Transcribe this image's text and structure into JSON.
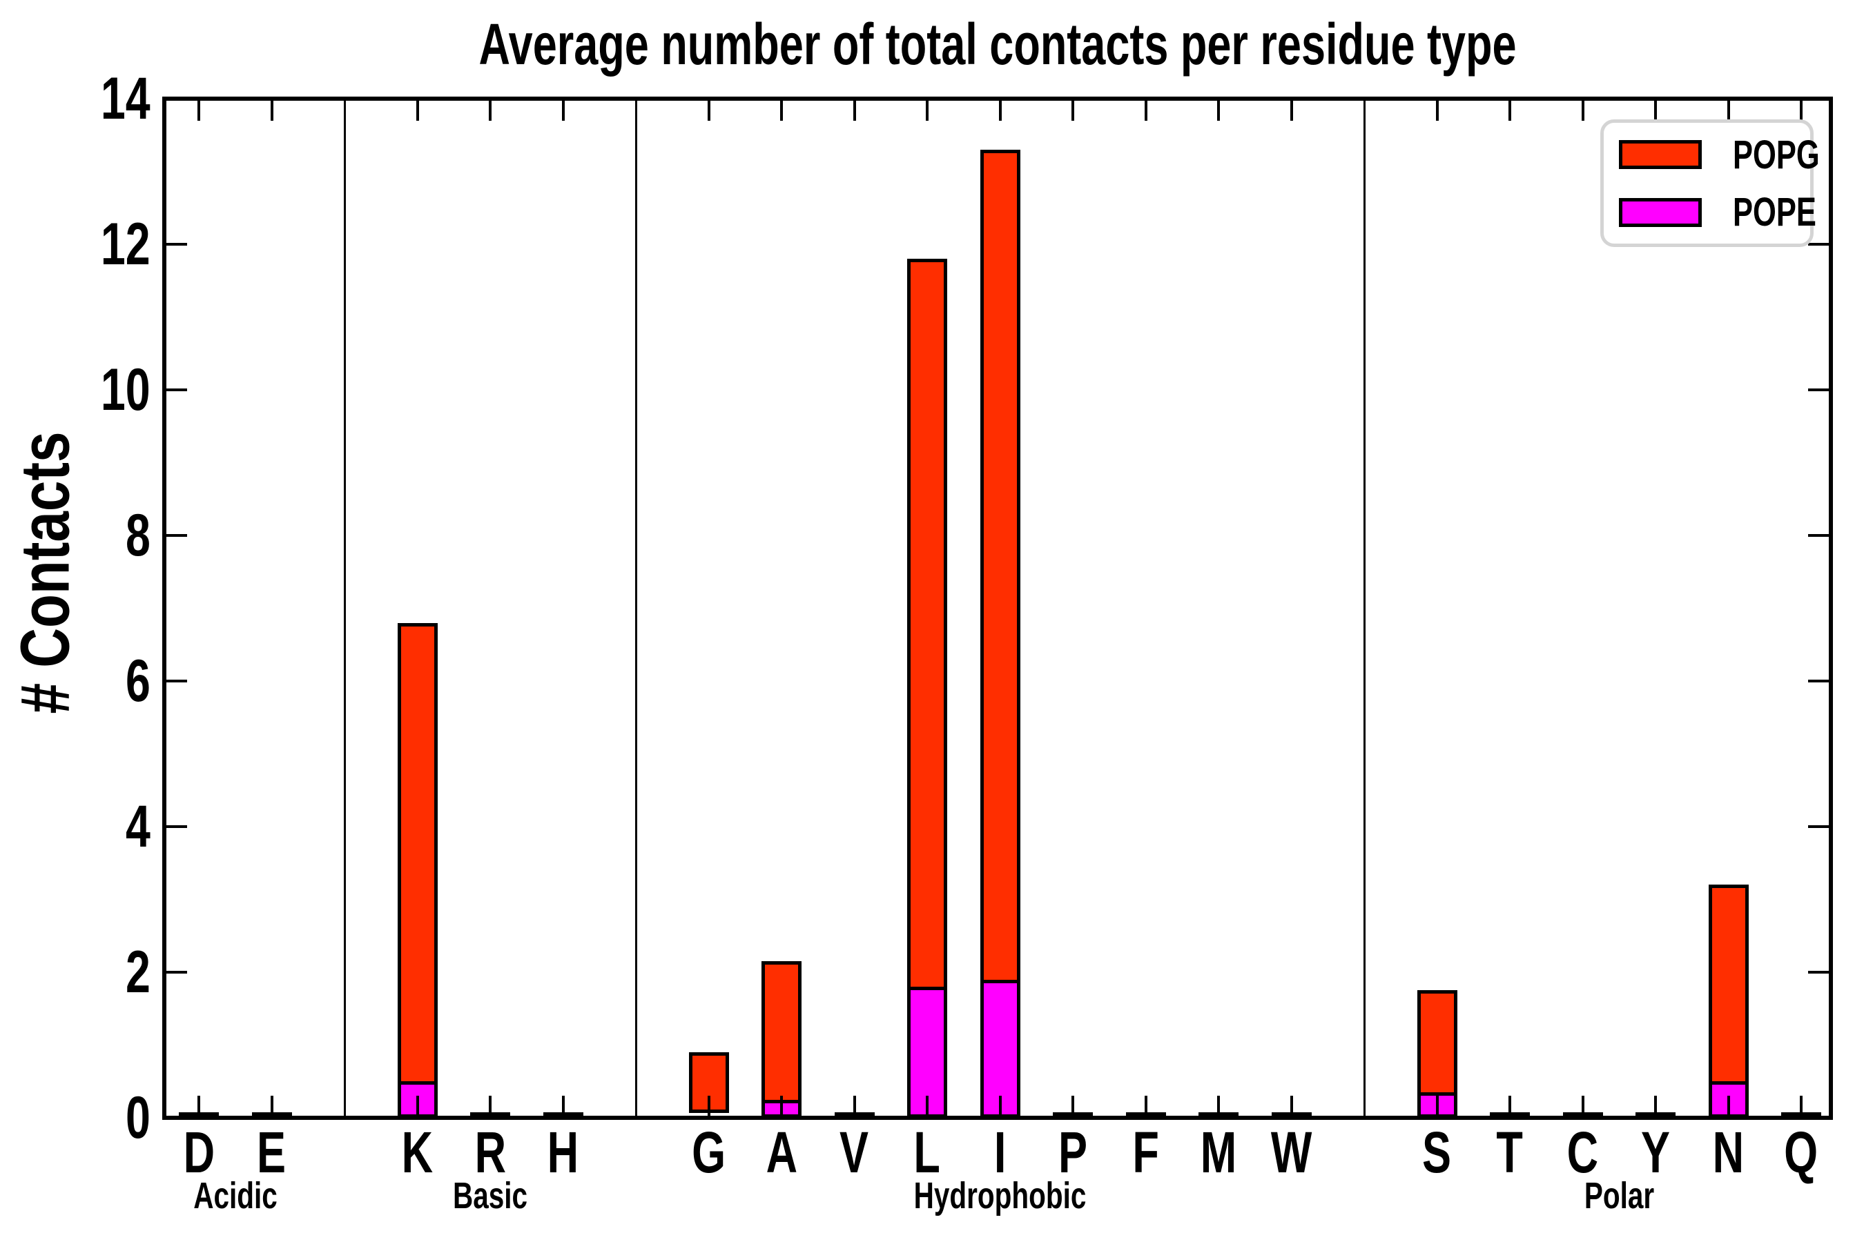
{
  "figure": {
    "title": "Average number of total contacts per residue type",
    "y_axis_label": "# Contacts",
    "background_color": "#ffffff",
    "axis_color": "#000000"
  },
  "legend": {
    "position": "upper right",
    "entries": [
      {
        "label": "POPG",
        "color": "#ff2e00"
      },
      {
        "label": "POPE",
        "color": "#ff00ff"
      }
    ]
  },
  "chart_data": {
    "type": "bar",
    "stacked": true,
    "title": "Average number of total contacts per residue type",
    "xlabel": "",
    "ylabel": "# Contacts",
    "ylim": [
      0,
      14
    ],
    "yticks": [
      0,
      2,
      4,
      6,
      8,
      10,
      12,
      14
    ],
    "grid": false,
    "tick_direction": "in",
    "legend_position": "upper right",
    "groups": [
      {
        "label": "Acidic",
        "members": [
          "D",
          "E"
        ]
      },
      {
        "label": "Basic",
        "members": [
          "K",
          "R",
          "H"
        ]
      },
      {
        "label": "Hydrophobic",
        "members": [
          "G",
          "A",
          "V",
          "L",
          "I",
          "P",
          "F",
          "M",
          "W"
        ]
      },
      {
        "label": "Polar",
        "members": [
          "S",
          "T",
          "C",
          "Y",
          "N",
          "Q"
        ]
      }
    ],
    "categories": [
      "D",
      "E",
      "K",
      "R",
      "H",
      "G",
      "A",
      "V",
      "L",
      "I",
      "P",
      "F",
      "M",
      "W",
      "S",
      "T",
      "C",
      "Y",
      "N",
      "Q"
    ],
    "series": [
      {
        "name": "POPE",
        "color": "#ff00ff",
        "values": [
          0,
          0,
          0.5,
          0,
          0,
          0.07,
          0.25,
          0,
          1.8,
          1.9,
          0,
          0,
          0,
          0,
          0.35,
          0,
          0,
          0,
          0.5,
          0
        ]
      },
      {
        "name": "POPG",
        "color": "#ff2e00",
        "values": [
          0.02,
          0.03,
          6.3,
          0.02,
          0.02,
          0.83,
          1.9,
          0.03,
          10.0,
          11.4,
          0.02,
          0.03,
          0.02,
          0.03,
          1.4,
          0.02,
          0.02,
          0.03,
          2.7,
          0.02
        ]
      }
    ],
    "totals": [
      0.02,
      0.03,
      6.8,
      0.02,
      0.02,
      0.9,
      2.15,
      0.03,
      11.8,
      13.3,
      0.02,
      0.03,
      0.02,
      0.03,
      1.75,
      0.02,
      0.02,
      0.03,
      3.2,
      0.02
    ]
  }
}
